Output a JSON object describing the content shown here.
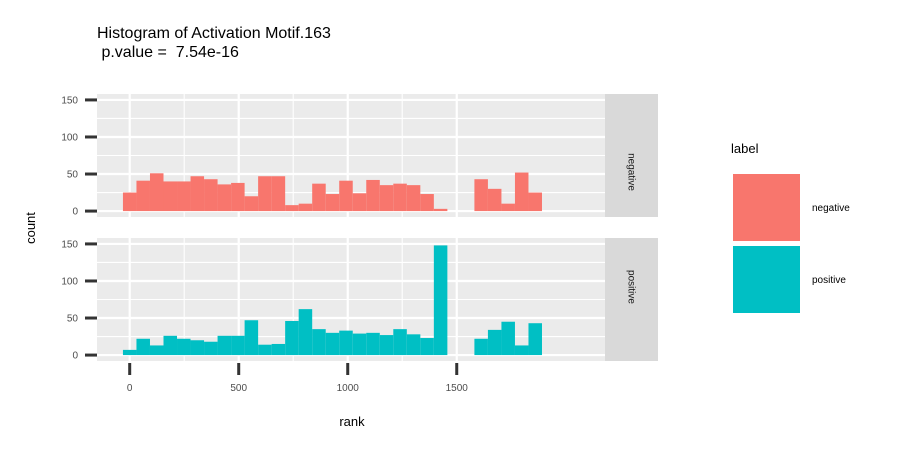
{
  "chart_data": {
    "type": "bar",
    "title": "Histogram of Activation Motif.163",
    "subtitle": " p.value =  7.54e-16",
    "xlabel": "rank",
    "ylabel": "count",
    "x_ticks": [
      0,
      500,
      1000,
      1500
    ],
    "y_ticks": [
      0,
      50,
      100,
      150
    ],
    "xlim": [
      -150,
      2180
    ],
    "ylim": [
      -8,
      158
    ],
    "bin_width": 62,
    "bin_starts": [
      -31,
      31,
      93,
      155,
      217,
      279,
      341,
      403,
      465,
      527,
      589,
      651,
      713,
      775,
      837,
      899,
      961,
      1023,
      1085,
      1147,
      1209,
      1271,
      1333,
      1395,
      1457,
      1519,
      1581,
      1643,
      1705,
      1767,
      1829
    ],
    "series": [
      {
        "name": "negative",
        "color": "#F8766D",
        "values": [
          25,
          41,
          51,
          40,
          40,
          47,
          43,
          36,
          38,
          20,
          47,
          47,
          8,
          10,
          37,
          23,
          41,
          24,
          42,
          35,
          37,
          35,
          23,
          3,
          0,
          0,
          43,
          30,
          10,
          52,
          25
        ]
      },
      {
        "name": "positive",
        "color": "#00BFC4",
        "values": [
          7,
          22,
          13,
          26,
          22,
          20,
          18,
          26,
          26,
          47,
          14,
          15,
          46,
          62,
          35,
          30,
          33,
          29,
          30,
          27,
          35,
          28,
          23,
          148,
          0,
          0,
          22,
          34,
          45,
          13,
          43
        ]
      }
    ],
    "facets": [
      "negative",
      "positive"
    ],
    "legend": {
      "title": "label",
      "entries": [
        "negative",
        "positive"
      ],
      "position": "right"
    },
    "grid": true,
    "panel_background": "#EBEBEB",
    "strip_background": "#D9D9D9"
  }
}
